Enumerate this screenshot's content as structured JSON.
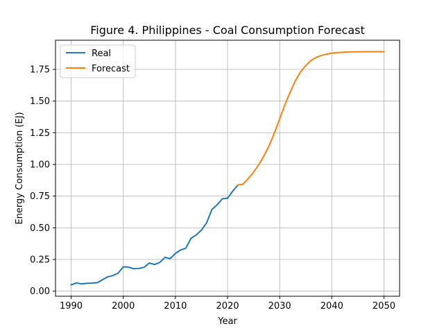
{
  "chart_data": {
    "type": "line",
    "title": "Figure 4. Philippines - Coal Consumption Forecast",
    "xlabel": "Year",
    "ylabel": "Energy Consumption (EJ)",
    "xlim": [
      1987,
      2053
    ],
    "ylim": [
      -0.04,
      1.98
    ],
    "xticks": [
      1990,
      2000,
      2010,
      2020,
      2030,
      2040,
      2050
    ],
    "xtick_labels": [
      "1990",
      "2000",
      "2010",
      "2020",
      "2030",
      "2040",
      "2050"
    ],
    "yticks": [
      0.0,
      0.25,
      0.5,
      0.75,
      1.0,
      1.25,
      1.5,
      1.75
    ],
    "ytick_labels": [
      "0.00",
      "0.25",
      "0.50",
      "0.75",
      "1.00",
      "1.25",
      "1.50",
      "1.75"
    ],
    "grid": true,
    "legend_position": "upper-left",
    "series": [
      {
        "name": "Real",
        "color": "#1f77b4",
        "x": [
          1990,
          1991,
          1992,
          1993,
          1994,
          1995,
          1996,
          1997,
          1998,
          1999,
          2000,
          2001,
          2002,
          2003,
          2004,
          2005,
          2006,
          2007,
          2008,
          2009,
          2010,
          2011,
          2012,
          2013,
          2014,
          2015,
          2016,
          2017,
          2018,
          2019,
          2020,
          2021,
          2022
        ],
        "y": [
          0.05,
          0.065,
          0.057,
          0.062,
          0.064,
          0.067,
          0.09,
          0.113,
          0.123,
          0.142,
          0.192,
          0.19,
          0.177,
          0.179,
          0.189,
          0.222,
          0.21,
          0.227,
          0.267,
          0.257,
          0.298,
          0.325,
          0.339,
          0.417,
          0.444,
          0.482,
          0.54,
          0.645,
          0.681,
          0.729,
          0.733,
          0.79,
          0.838
        ]
      },
      {
        "name": "Forecast",
        "color": "#ff7f0e",
        "x": [
          2022,
          2023,
          2024,
          2025,
          2026,
          2027,
          2028,
          2029,
          2030,
          2031,
          2032,
          2033,
          2034,
          2035,
          2036,
          2037,
          2038,
          2039,
          2040,
          2041,
          2042,
          2043,
          2044,
          2045,
          2046,
          2047,
          2048,
          2049,
          2050
        ],
        "y": [
          0.838,
          0.845,
          0.89,
          0.94,
          1.0,
          1.07,
          1.15,
          1.25,
          1.36,
          1.47,
          1.57,
          1.66,
          1.73,
          1.78,
          1.82,
          1.845,
          1.86,
          1.87,
          1.878,
          1.882,
          1.885,
          1.887,
          1.888,
          1.889,
          1.889,
          1.89,
          1.89,
          1.89,
          1.89
        ]
      }
    ]
  }
}
